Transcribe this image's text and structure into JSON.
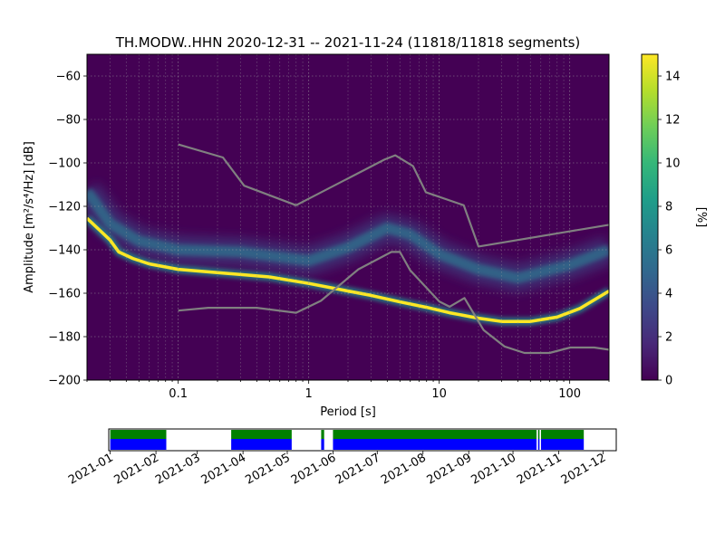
{
  "chart_data": {
    "type": "heatmap",
    "title": "TH.MODW..HHN   2020-12-31 -- 2021-11-24  (11818/11818 segments)",
    "xlabel": "Period [s]",
    "ylabel": "Amplitude [m²/s⁴/Hz] [dB]",
    "x_scale": "log",
    "xlim": [
      0.02,
      200
    ],
    "ylim": [
      -200,
      -50
    ],
    "x_ticks": [
      {
        "value": 0.1,
        "label": "0.1"
      },
      {
        "value": 1,
        "label": "1"
      },
      {
        "value": 10,
        "label": "10"
      },
      {
        "value": 100,
        "label": "100"
      }
    ],
    "y_ticks": [
      {
        "value": -60,
        "label": "−60"
      },
      {
        "value": -80,
        "label": "−80"
      },
      {
        "value": -100,
        "label": "−100"
      },
      {
        "value": -120,
        "label": "−120"
      },
      {
        "value": -140,
        "label": "−140"
      },
      {
        "value": -160,
        "label": "−160"
      },
      {
        "value": -180,
        "label": "−180"
      },
      {
        "value": -200,
        "label": "−200"
      }
    ],
    "grid": true,
    "colorbar": {
      "label": "[%]",
      "range": [
        0,
        15
      ],
      "ticks": [
        {
          "value": 0,
          "label": "0"
        },
        {
          "value": 2,
          "label": "2"
        },
        {
          "value": 4,
          "label": "4"
        },
        {
          "value": 6,
          "label": "6"
        },
        {
          "value": 8,
          "label": "8"
        },
        {
          "value": 10,
          "label": "10"
        },
        {
          "value": 12,
          "label": "12"
        },
        {
          "value": 14,
          "label": "14"
        }
      ],
      "colors": [
        "#440154",
        "#482878",
        "#3e4989",
        "#31688e",
        "#26828e",
        "#1f9e89",
        "#35b779",
        "#6ece58",
        "#b5de2b",
        "#fde725"
      ]
    },
    "background_color": "#440154",
    "high_model": [
      [
        0.1,
        -91.5
      ],
      [
        0.22,
        -97.5
      ],
      [
        0.32,
        -110.5
      ],
      [
        0.8,
        -119.5
      ],
      [
        3.8,
        -98.5
      ],
      [
        4.6,
        -96.5
      ],
      [
        6.3,
        -101.5
      ],
      [
        7.9,
        -113.5
      ],
      [
        15.4,
        -119.5
      ],
      [
        20,
        -138.5
      ],
      [
        200,
        -128.5
      ]
    ],
    "low_model": [
      [
        0.1,
        -168
      ],
      [
        0.17,
        -166.7
      ],
      [
        0.4,
        -166.7
      ],
      [
        0.8,
        -169
      ],
      [
        1.24,
        -163.5
      ],
      [
        2.4,
        -149
      ],
      [
        4.3,
        -141
      ],
      [
        5.0,
        -141
      ],
      [
        6.0,
        -149.5
      ],
      [
        10,
        -163.8
      ],
      [
        12,
        -166.2
      ],
      [
        15.6,
        -162.2
      ],
      [
        21.9,
        -177
      ],
      [
        31.6,
        -184.5
      ],
      [
        45,
        -187.5
      ],
      [
        70,
        -187.5
      ],
      [
        101,
        -185
      ],
      [
        154,
        -185
      ],
      [
        200,
        -186
      ]
    ],
    "mode_line": [
      [
        0.02,
        -125.5
      ],
      [
        0.025,
        -131
      ],
      [
        0.03,
        -135.5
      ],
      [
        0.035,
        -141
      ],
      [
        0.045,
        -144
      ],
      [
        0.06,
        -146.5
      ],
      [
        0.1,
        -149
      ],
      [
        0.2,
        -150.5
      ],
      [
        0.5,
        -152.5
      ],
      [
        1,
        -155.5
      ],
      [
        2,
        -159
      ],
      [
        3,
        -161
      ],
      [
        5,
        -164
      ],
      [
        8,
        -166.5
      ],
      [
        12,
        -169
      ],
      [
        20,
        -171.5
      ],
      [
        30,
        -173
      ],
      [
        50,
        -173
      ],
      [
        80,
        -171
      ],
      [
        120,
        -167
      ],
      [
        200,
        -159
      ]
    ],
    "background_noise_band": [
      [
        0.02,
        -113
      ],
      [
        0.03,
        -128
      ],
      [
        0.05,
        -136
      ],
      [
        0.1,
        -140
      ],
      [
        0.3,
        -141
      ],
      [
        1,
        -145
      ],
      [
        2,
        -139
      ],
      [
        4,
        -130
      ],
      [
        6,
        -133
      ],
      [
        10,
        -142
      ],
      [
        20,
        -149
      ],
      [
        40,
        -153
      ],
      [
        100,
        -147
      ],
      [
        200,
        -140
      ]
    ],
    "timeline": {
      "tick_labels": [
        "2021-01",
        "2021-02",
        "2021-03",
        "2021-04",
        "2021-05",
        "2021-06",
        "2021-07",
        "2021-08",
        "2021-09",
        "2021-10",
        "2021-11",
        "2021-12"
      ],
      "range": [
        "2020-12-31",
        "2021-11-24"
      ],
      "coverage_colors": {
        "data": "#0000ff",
        "psd": "#008000",
        "gap": "#ff0000"
      },
      "coverage_intervals": [
        [
          "2021-01-01",
          "2021-02-08"
        ],
        [
          "2021-03-24",
          "2021-05-04"
        ],
        [
          "2021-05-24",
          "2021-05-26"
        ],
        [
          "2021-06-01",
          "2021-10-17"
        ],
        [
          "2021-10-18",
          "2021-10-19"
        ],
        [
          "2021-10-20",
          "2021-11-18"
        ]
      ]
    }
  }
}
